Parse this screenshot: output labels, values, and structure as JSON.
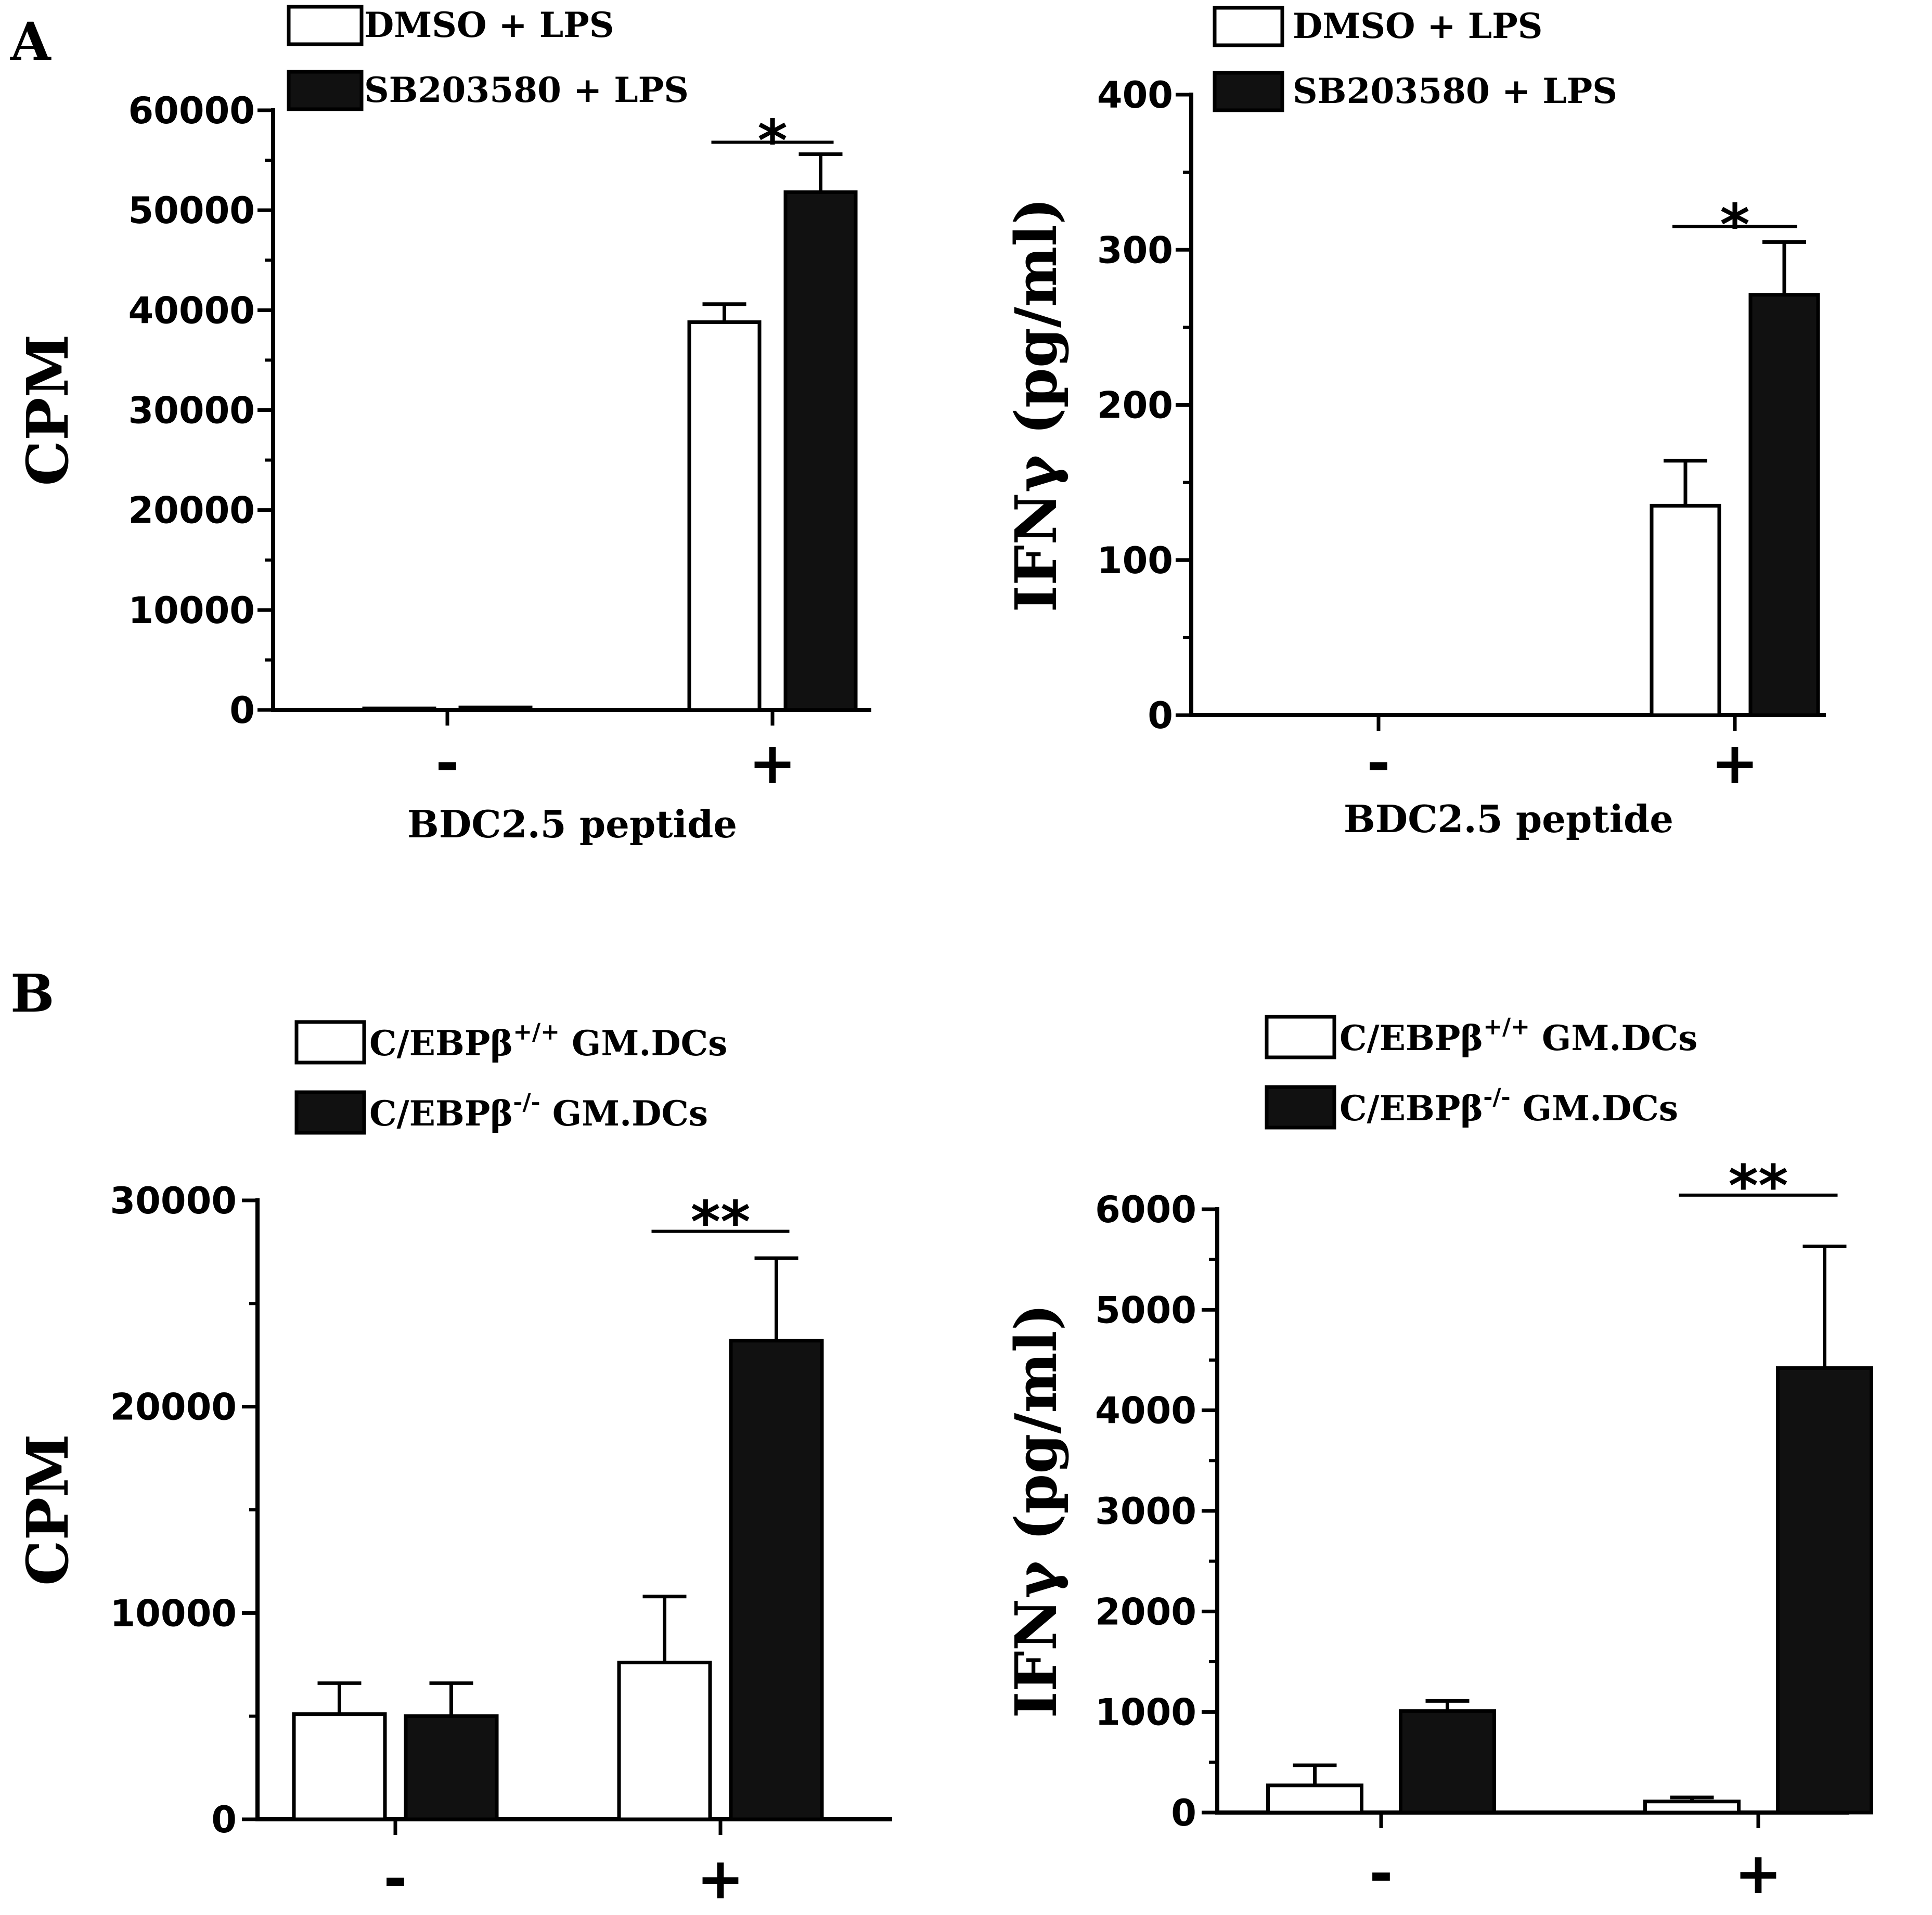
{
  "panels": {
    "A": "A",
    "B": "B"
  },
  "chart_data": [
    {
      "type": "bar",
      "panel": "A",
      "categories": [
        "-",
        "+"
      ],
      "xlabel": "BDC2.5 peptide",
      "ylabel": "CPM",
      "ylim": [
        0,
        60000
      ],
      "yticks": [
        0,
        10000,
        20000,
        30000,
        40000,
        50000,
        60000
      ],
      "minor_per_major": 2,
      "series": [
        {
          "name": "DMSO + LPS",
          "fill": "white",
          "values": [
            150,
            38800
          ],
          "errors": [
            0,
            1800
          ]
        },
        {
          "name": "SB203580 + LPS",
          "fill": "black",
          "values": [
            250,
            51800
          ],
          "errors": [
            0,
            3800
          ]
        }
      ],
      "significance": [
        {
          "category": 1,
          "label": "*",
          "y": 56800
        }
      ],
      "legend": {
        "title": "",
        "sup": [
          "",
          ""
        ],
        "suffix": [
          "",
          ""
        ]
      }
    },
    {
      "type": "bar",
      "panel": "A",
      "categories": [
        "-",
        "+"
      ],
      "xlabel": "BDC2.5 peptide",
      "ylabel": "IFNγ (pg/ml)",
      "ylim": [
        0,
        400
      ],
      "yticks": [
        0,
        100,
        200,
        300,
        400
      ],
      "minor_per_major": 2,
      "series": [
        {
          "name": "DMSO + LPS",
          "fill": "white",
          "values": [
            0,
            135
          ],
          "errors": [
            0,
            29
          ]
        },
        {
          "name": "SB203580 + LPS",
          "fill": "black",
          "values": [
            0,
            271
          ],
          "errors": [
            0,
            34
          ]
        }
      ],
      "significance": [
        {
          "category": 1,
          "label": "*",
          "y": 315
        }
      ],
      "legend": {
        "title": "",
        "sup": [
          "",
          ""
        ],
        "suffix": [
          "",
          ""
        ]
      }
    },
    {
      "type": "bar",
      "panel": "B",
      "categories": [
        "-",
        "+"
      ],
      "xlabel": "",
      "ylabel": "CPM",
      "ylim": [
        0,
        30000
      ],
      "yticks": [
        0,
        10000,
        20000,
        30000
      ],
      "minor_per_major": 2,
      "series": [
        {
          "name": "C/EBPβ",
          "sup": "+/+",
          "suffix": "GM.DCs",
          "fill": "white",
          "values": [
            5100,
            7600
          ],
          "errors": [
            1500,
            3200
          ]
        },
        {
          "name": "C/EBPβ",
          "sup": "-/-",
          "suffix": "GM.DCs",
          "fill": "black",
          "values": [
            5000,
            23200
          ],
          "errors": [
            1600,
            4000
          ]
        }
      ],
      "significance": [
        {
          "category": 1,
          "label": "**",
          "y": 28500
        }
      ],
      "legend": {
        "title": ""
      }
    },
    {
      "type": "bar",
      "panel": "B",
      "categories": [
        "-",
        "+"
      ],
      "xlabel": "",
      "ylabel": "IFNγ (pg/ml)",
      "ylim": [
        0,
        6000
      ],
      "yticks": [
        0,
        1000,
        2000,
        3000,
        4000,
        5000,
        6000
      ],
      "minor_per_major": 2,
      "series": [
        {
          "name": "C/EBPβ",
          "sup": "+/+",
          "suffix": "GM.DCs",
          "fill": "white",
          "values": [
            270,
            110
          ],
          "errors": [
            200,
            40
          ]
        },
        {
          "name": "C/EBPβ",
          "sup": "-/-",
          "suffix": "GM.DCs",
          "fill": "black",
          "values": [
            1010,
            4420
          ],
          "errors": [
            100,
            1210
          ]
        }
      ],
      "significance": [
        {
          "category": 1,
          "label": "**",
          "y": 6140
        }
      ],
      "legend": {
        "title": ""
      }
    }
  ]
}
